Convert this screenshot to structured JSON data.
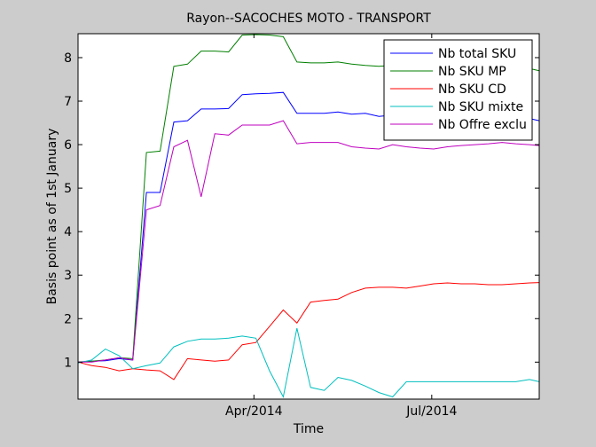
{
  "chart_data": {
    "type": "line",
    "title": "Rayon--SACOCHES MOTO - TRANSPORT",
    "xlabel": "Time",
    "ylabel": "Basis point as of 1st January",
    "xlim": [
      "2014-01-01",
      "2014-08-25"
    ],
    "ylim": [
      0.15,
      8.55
    ],
    "x_ticks": [
      {
        "date": "2014-04-01",
        "label": "Apr/2014"
      },
      {
        "date": "2014-07-01",
        "label": "Jul/2014"
      }
    ],
    "y_ticks": [
      1,
      2,
      3,
      4,
      5,
      6,
      7,
      8
    ],
    "legend_position": "top-right",
    "grid": false,
    "x": [
      "2014-01-01",
      "2014-01-08",
      "2014-01-15",
      "2014-01-22",
      "2014-01-29",
      "2014-02-05",
      "2014-02-12",
      "2014-02-19",
      "2014-02-26",
      "2014-03-05",
      "2014-03-12",
      "2014-03-19",
      "2014-03-26",
      "2014-04-02",
      "2014-04-09",
      "2014-04-16",
      "2014-04-23",
      "2014-04-30",
      "2014-05-07",
      "2014-05-14",
      "2014-05-21",
      "2014-05-28",
      "2014-06-04",
      "2014-06-11",
      "2014-06-18",
      "2014-06-25",
      "2014-07-02",
      "2014-07-09",
      "2014-07-16",
      "2014-07-23",
      "2014-07-30",
      "2014-08-06",
      "2014-08-13",
      "2014-08-20",
      "2014-08-25"
    ],
    "series": [
      {
        "name": "Nb total SKU",
        "color": "#0000ff",
        "values": [
          1.0,
          1.02,
          1.03,
          1.08,
          1.05,
          4.9,
          4.9,
          6.52,
          6.55,
          6.82,
          6.82,
          6.83,
          7.15,
          7.17,
          7.18,
          7.2,
          6.72,
          6.72,
          6.72,
          6.75,
          6.7,
          6.72,
          6.65,
          6.68,
          6.7,
          6.65,
          6.65,
          6.62,
          6.6,
          6.6,
          6.58,
          6.6,
          6.58,
          6.6,
          6.55
        ]
      },
      {
        "name": "Nb SKU MP",
        "color": "#007f00",
        "values": [
          1.0,
          1.02,
          1.05,
          1.1,
          1.08,
          5.82,
          5.85,
          7.8,
          7.85,
          8.15,
          8.15,
          8.13,
          8.52,
          8.53,
          8.52,
          8.48,
          7.9,
          7.88,
          7.88,
          7.9,
          7.85,
          7.82,
          7.8,
          7.82,
          7.8,
          7.75,
          7.72,
          7.7,
          7.72,
          7.72,
          7.7,
          7.75,
          7.72,
          7.75,
          7.7
        ]
      },
      {
        "name": "Nb SKU CD",
        "color": "#ff0000",
        "values": [
          1.0,
          0.92,
          0.88,
          0.8,
          0.85,
          0.82,
          0.8,
          0.6,
          1.08,
          1.05,
          1.02,
          1.05,
          1.4,
          1.45,
          1.82,
          2.2,
          1.9,
          2.38,
          2.42,
          2.45,
          2.6,
          2.7,
          2.72,
          2.72,
          2.7,
          2.75,
          2.8,
          2.82,
          2.8,
          2.8,
          2.78,
          2.78,
          2.8,
          2.82,
          2.83
        ]
      },
      {
        "name": "Nb SKU mixte",
        "color": "#00bfbf",
        "values": [
          0.98,
          1.05,
          1.3,
          1.15,
          0.85,
          0.92,
          0.98,
          1.35,
          1.48,
          1.53,
          1.53,
          1.55,
          1.6,
          1.55,
          0.8,
          0.2,
          1.78,
          0.42,
          0.35,
          0.65,
          0.58,
          0.45,
          0.3,
          0.2,
          0.55,
          0.55,
          0.55,
          0.55,
          0.55,
          0.55,
          0.55,
          0.55,
          0.55,
          0.6,
          0.55
        ]
      },
      {
        "name": "Nb Offre exclu",
        "color": "#bf00bf",
        "values": [
          1.0,
          1.0,
          1.05,
          1.1,
          1.05,
          4.5,
          4.6,
          5.95,
          6.1,
          4.8,
          6.25,
          6.22,
          6.45,
          6.45,
          6.45,
          6.55,
          6.02,
          6.05,
          6.05,
          6.05,
          5.95,
          5.92,
          5.9,
          6.0,
          5.95,
          5.92,
          5.9,
          5.95,
          5.98,
          6.0,
          6.02,
          6.05,
          6.02,
          6.0,
          5.98
        ]
      }
    ]
  }
}
